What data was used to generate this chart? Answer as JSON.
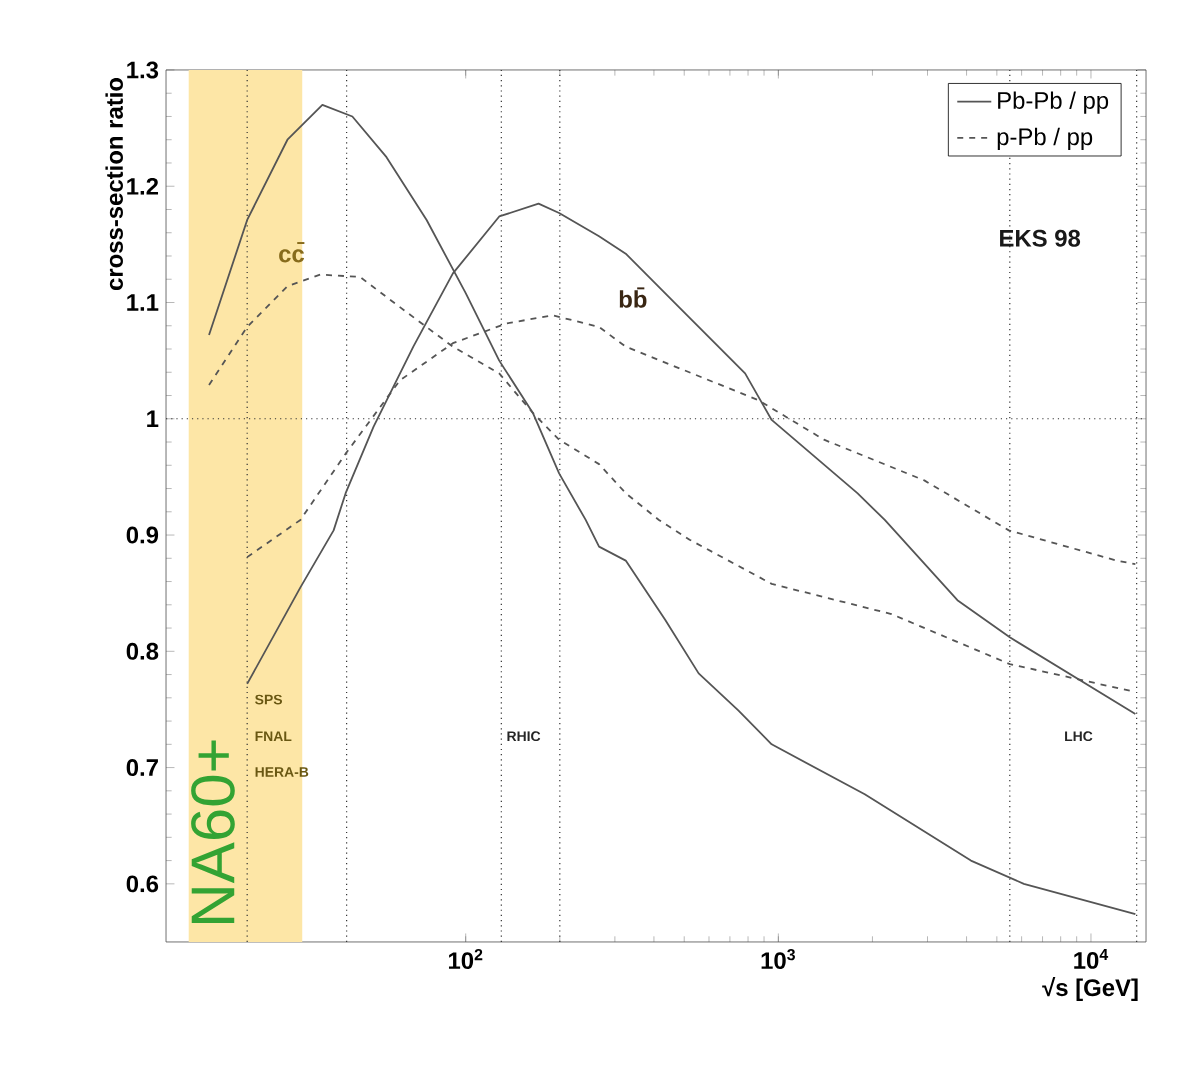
{
  "chart_data": {
    "type": "line",
    "xlabel": "√s [GeV]",
    "ylabel": "cross-section ratio",
    "log": "x",
    "xlim": [
      11,
      15000
    ],
    "ylim": [
      0.55,
      1.3
    ],
    "xticks": [
      {
        "value": 100,
        "label": "10$^{2}$"
      },
      {
        "value": 1000,
        "label": "10$^{3}$"
      },
      {
        "value": 10000,
        "label": "10$^{4}$"
      }
    ],
    "yticks": [
      0.6,
      0.7,
      0.8,
      0.9,
      1,
      1.1,
      1.2,
      1.3
    ],
    "grid": false,
    "legend": "top right",
    "marker": "none",
    "series": [
      {
        "name": "Pb-Pb / pp",
        "color": "#555555",
        "line_style": "solid",
        "x": [
          15.1,
          20,
          26.9,
          34.8,
          43.4,
          55.8,
          75,
          100,
          128,
          164,
          199,
          242,
          267,
          325,
          435,
          556,
          746,
          952,
          1890,
          4130,
          6100,
          13870
        ],
        "values": [
          1.072,
          1.171,
          1.24,
          1.27,
          1.26,
          1.225,
          1.171,
          1.108,
          1.05,
          1.005,
          0.953,
          0.913,
          0.89,
          0.878,
          0.827,
          0.781,
          0.749,
          0.72,
          0.677,
          0.62,
          0.6,
          0.574
        ]
      },
      {
        "name": "p-Pb / pp",
        "color": "#555555",
        "line_style": "dashed",
        "x": [
          15.1,
          20,
          26.9,
          34.3,
          45.9,
          61.6,
          91,
          128,
          164,
          199,
          267,
          325,
          415,
          520,
          952,
          2300,
          5500,
          13870
        ],
        "values": [
          1.029,
          1.079,
          1.114,
          1.124,
          1.122,
          1.096,
          1.062,
          1.039,
          1.005,
          0.982,
          0.961,
          0.936,
          0.913,
          0.896,
          0.858,
          0.832,
          0.789,
          0.765
        ]
      },
      {
        "color": "#555555",
        "line_style": "solid",
        "x": [
          20,
          29.6,
          37.8,
          41.3,
          50.7,
          68,
          91,
          128,
          171,
          199,
          267,
          325,
          481,
          783,
          952,
          1790,
          2190,
          3740,
          5500,
          13870
        ],
        "values": [
          0.772,
          0.855,
          0.904,
          0.936,
          0.993,
          1.062,
          1.125,
          1.174,
          1.185,
          1.177,
          1.157,
          1.142,
          1.096,
          1.039,
          0.999,
          0.936,
          0.913,
          0.844,
          0.812,
          0.746
        ]
      },
      {
        "color": "#555555",
        "line_style": "dashed",
        "x": [
          20,
          29.6,
          41.3,
          61.6,
          91,
          135,
          190,
          267,
          325,
          530,
          863,
          1400,
          2930,
          5460,
          12100,
          13870
        ],
        "values": [
          0.881,
          0.913,
          0.97,
          1.033,
          1.065,
          1.082,
          1.089,
          1.079,
          1.062,
          1.039,
          1.016,
          0.982,
          0.947,
          0.904,
          0.878,
          0.875
        ]
      }
    ],
    "ref_lines": [
      {
        "axis": "y",
        "value": 1,
        "line_style": "dotted",
        "color": "#333333"
      },
      {
        "axis": "x",
        "value": 20,
        "line_style": "dotted",
        "color": "#333333"
      },
      {
        "axis": "x",
        "value": 41.6,
        "line_style": "dotted",
        "color": "#333333"
      },
      {
        "axis": "x",
        "value": 130,
        "line_style": "dotted",
        "color": "#333333"
      },
      {
        "axis": "x",
        "value": 200,
        "line_style": "dotted",
        "color": "#333333"
      },
      {
        "axis": "x",
        "value": 5500,
        "line_style": "dotted",
        "color": "#333333"
      },
      {
        "axis": "x",
        "value": 14000,
        "line_style": "dotted",
        "color": "#333333"
      }
    ],
    "bands": [
      {
        "axis": "x",
        "from": 13,
        "to": 30,
        "label": "NA60+",
        "color": "#fde6a6"
      }
    ],
    "annotations": [
      "cc̄",
      "bb̄",
      "EKS 98",
      "SPS",
      "FNAL",
      "HERA-B",
      "RHIC",
      "LHC"
    ]
  }
}
